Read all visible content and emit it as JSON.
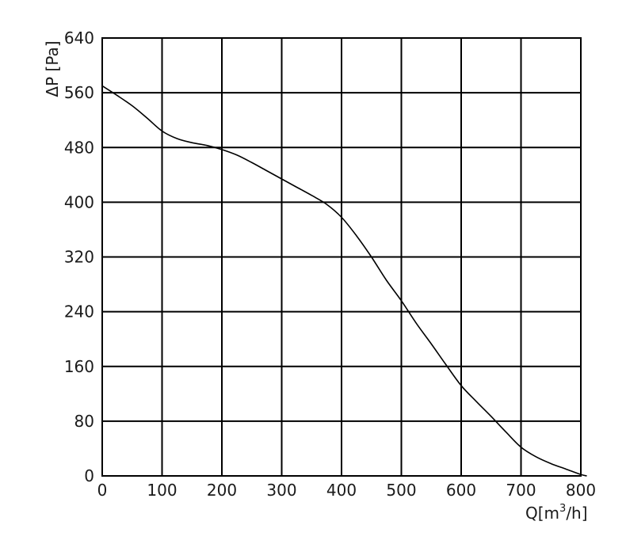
{
  "chart_data": {
    "type": "line",
    "title": "",
    "xlabel": "Q[m³/h]",
    "xlabel_parts": {
      "base": "Q[m",
      "superscript": "3",
      "tail": "/h]"
    },
    "ylabel": "ΔP [Pa]",
    "xlim": [
      0,
      800
    ],
    "ylim": [
      0,
      640
    ],
    "x_ticks": [
      "0",
      "100",
      "200",
      "300",
      "400",
      "500",
      "600",
      "700",
      "800"
    ],
    "y_ticks": [
      "0",
      "80",
      "160",
      "240",
      "320",
      "400",
      "480",
      "560",
      "640"
    ],
    "x_tick_values": [
      0,
      100,
      200,
      300,
      400,
      500,
      600,
      700,
      800
    ],
    "y_tick_values": [
      0,
      80,
      160,
      240,
      320,
      400,
      480,
      560,
      640
    ],
    "grid": true,
    "series": [
      {
        "x": [
          0,
          25,
          50,
          75,
          100,
          125,
          150,
          175,
          200,
          225,
          250,
          275,
          300,
          325,
          350,
          375,
          400,
          425,
          450,
          475,
          500,
          525,
          550,
          575,
          600,
          625,
          650,
          675,
          700,
          725,
          750,
          775,
          800,
          810
        ],
        "y": [
          570,
          556,
          541,
          523,
          504,
          493,
          487,
          483,
          477,
          469,
          458,
          446,
          434,
          422,
          410,
          397,
          378,
          351,
          320,
          286,
          256,
          223,
          193,
          162,
          132,
          109,
          87,
          64,
          42,
          28,
          18,
          10,
          2,
          0
        ]
      }
    ],
    "colors": {
      "line": "#000000",
      "grid": "#000000",
      "text": "#1a1a1a",
      "background": "#ffffff"
    }
  }
}
